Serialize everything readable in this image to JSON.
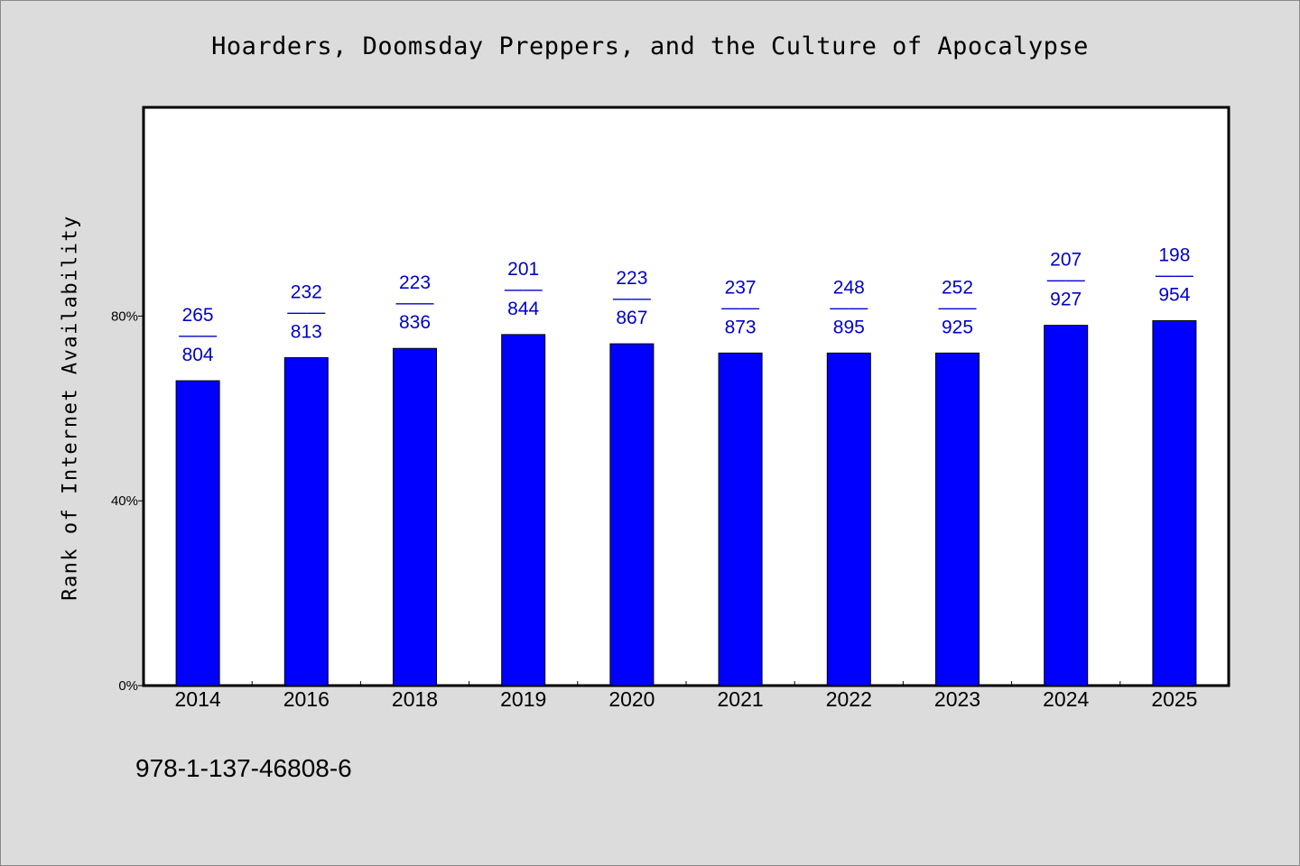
{
  "chart_data": {
    "type": "bar",
    "title": "Hoarders, Doomsday Preppers, and the Culture of Apocalypse",
    "ylabel": "Rank of Internet Availability",
    "xlabel": "",
    "categories": [
      "2014",
      "2016",
      "2018",
      "2019",
      "2020",
      "2021",
      "2022",
      "2023",
      "2024",
      "2025"
    ],
    "values": [
      0.66,
      0.71,
      0.73,
      0.76,
      0.74,
      0.72,
      0.72,
      0.72,
      0.78,
      0.79
    ],
    "data_labels": [
      {
        "top": "265",
        "sep": "——",
        "bottom": "804"
      },
      {
        "top": "232",
        "sep": "——",
        "bottom": "813"
      },
      {
        "top": "223",
        "sep": "——",
        "bottom": "836"
      },
      {
        "top": "201",
        "sep": "——",
        "bottom": "844"
      },
      {
        "top": "223",
        "sep": "——",
        "bottom": "867"
      },
      {
        "top": "237",
        "sep": "——",
        "bottom": "873"
      },
      {
        "top": "248",
        "sep": "——",
        "bottom": "895"
      },
      {
        "top": "252",
        "sep": "——",
        "bottom": "925"
      },
      {
        "top": "207",
        "sep": "——",
        "bottom": "927"
      },
      {
        "top": "198",
        "sep": "——",
        "bottom": "954"
      }
    ],
    "yticks": [
      {
        "value": 0,
        "label": "0%"
      },
      {
        "value": 0.4,
        "label": "40%"
      },
      {
        "value": 0.8,
        "label": "80%"
      }
    ],
    "ylim": [
      0,
      1.0
    ],
    "grid": false,
    "colors": {
      "bar": "#0000ff",
      "bar_edge": "#000000",
      "data_label": "#0000cc",
      "plot_bg": "#ffffff",
      "page_bg": "#dcdcdc"
    }
  },
  "footnote": "978-1-137-46808-6"
}
